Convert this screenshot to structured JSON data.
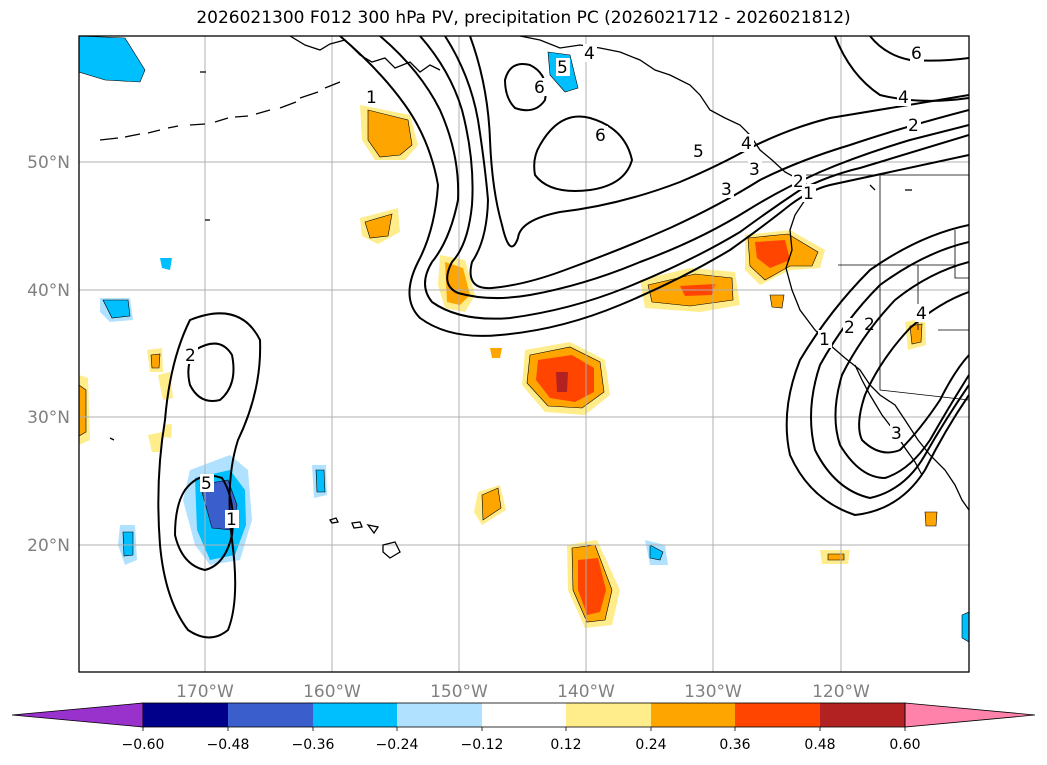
{
  "title": "2026021300 F012 300 hPa PV, precipitation PC (2026021712 - 2026021812)",
  "axes": {
    "lat_ticks": [
      "50°N",
      "40°N",
      "30°N",
      "20°N"
    ],
    "lon_ticks": [
      "170°W",
      "160°W",
      "150°W",
      "140°W",
      "130°W",
      "120°W"
    ]
  },
  "colorbar": {
    "levels": [
      "−0.60",
      "−0.48",
      "−0.36",
      "−0.24",
      "−0.12",
      "0.12",
      "0.24",
      "0.36",
      "0.48",
      "0.60"
    ],
    "colors": [
      "#9932cc",
      "#00008b",
      "#3a5fcd",
      "#00bfff",
      "#b0e2ff",
      "#ffffff",
      "#ffec8b",
      "#ffa500",
      "#ff4500",
      "#b22222",
      "#ff82ab"
    ]
  },
  "pv_labels": [
    "1",
    "2",
    "3",
    "4",
    "5",
    "6",
    "6",
    "5",
    "4",
    "3",
    "2",
    "1",
    "6",
    "4",
    "2",
    "5",
    "1",
    "2",
    "3",
    "4",
    "2",
    "1"
  ],
  "colors": {
    "grid": "#b0b0b0",
    "coast": "#000000",
    "contour": "#000000"
  }
}
